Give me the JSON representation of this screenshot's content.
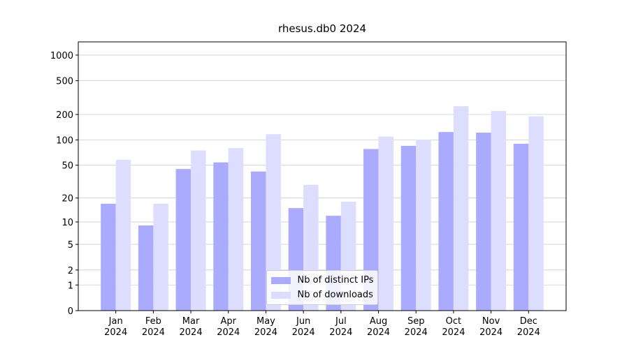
{
  "chart_data": {
    "type": "bar",
    "title": "rhesus.db0 2024",
    "scale": "log1p",
    "categories": [
      "Jan\n2024",
      "Feb\n2024",
      "Mar\n2024",
      "Apr\n2024",
      "May\n2024",
      "Jun\n2024",
      "Jul\n2024",
      "Aug\n2024",
      "Sep\n2024",
      "Oct\n2024",
      "Nov\n2024",
      "Dec\n2024"
    ],
    "series": [
      {
        "name": "Nb of distinct IPs",
        "color": "#aaaaff",
        "values": [
          17,
          9,
          45,
          54,
          42,
          15,
          12,
          78,
          85,
          124,
          122,
          90
        ]
      },
      {
        "name": "Nb of downloads",
        "color": "#ddddff",
        "values": [
          58,
          17,
          75,
          80,
          117,
          29,
          18,
          110,
          101,
          250,
          220,
          190
        ]
      }
    ],
    "ylim": [
      0,
      1430
    ],
    "yticks": [
      0,
      1,
      2,
      5,
      10,
      20,
      50,
      100,
      200,
      500,
      1000
    ],
    "grid": true,
    "legend": "lower center"
  }
}
